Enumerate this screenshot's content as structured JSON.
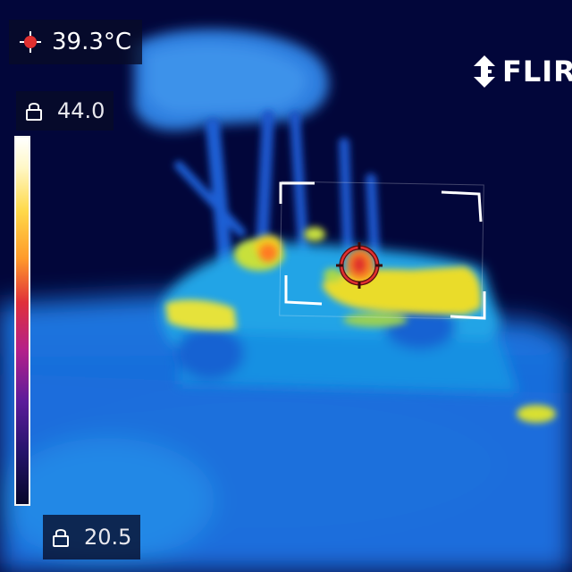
{
  "readouts": {
    "spot_temperature": "39.3°C",
    "scale_max": "44.0",
    "scale_min": "20.5"
  },
  "brand": {
    "name": "FLIR"
  },
  "icons": {
    "spot": "crosshair-icon",
    "lock_max": "lock-icon",
    "lock_min": "lock-icon",
    "brand": "flir-logo-icon"
  },
  "colors": {
    "background": "#02063a",
    "cold": "#0a2fd0",
    "mid": "#25b0e8",
    "warm": "#f0e020",
    "hot": "#e0302a",
    "spot_marker": "#e03030"
  }
}
